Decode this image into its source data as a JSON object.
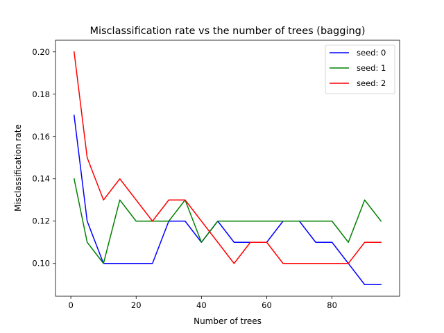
{
  "chart_data": {
    "type": "line",
    "title": "Misclassification rate vs the number of trees (bagging)",
    "xlabel": "Number of trees",
    "ylabel": "Misclassification rate",
    "xlim": [
      -4.7,
      100.7
    ],
    "ylim": [
      0.0845,
      0.2055
    ],
    "xticks": [
      0,
      20,
      40,
      60,
      80
    ],
    "xtick_labels": [
      "0",
      "20",
      "40",
      "60",
      "80"
    ],
    "yticks": [
      0.1,
      0.12,
      0.14,
      0.16,
      0.18,
      0.2
    ],
    "ytick_labels": [
      "0.10",
      "0.12",
      "0.14",
      "0.16",
      "0.18",
      "0.20"
    ],
    "grid": false,
    "legend_position": "top-right",
    "x": [
      1,
      5,
      10,
      15,
      20,
      25,
      30,
      35,
      40,
      45,
      50,
      55,
      60,
      65,
      70,
      75,
      80,
      85,
      90,
      95
    ],
    "series": [
      {
        "name": "seed: 0",
        "color": "#0000ff",
        "values": [
          0.17,
          0.12,
          0.1,
          0.1,
          0.1,
          0.1,
          0.12,
          0.12,
          0.11,
          0.12,
          0.11,
          0.11,
          0.11,
          0.12,
          0.12,
          0.11,
          0.11,
          0.1,
          0.09,
          0.09
        ]
      },
      {
        "name": "seed: 1",
        "color": "#008000",
        "values": [
          0.14,
          0.11,
          0.1,
          0.13,
          0.12,
          0.12,
          0.12,
          0.13,
          0.11,
          0.12,
          0.12,
          0.12,
          0.12,
          0.12,
          0.12,
          0.12,
          0.12,
          0.11,
          0.13,
          0.12
        ]
      },
      {
        "name": "seed: 2",
        "color": "#ff0000",
        "values": [
          0.2,
          0.15,
          0.13,
          0.14,
          0.13,
          0.12,
          0.13,
          0.13,
          0.12,
          0.11,
          0.1,
          0.11,
          0.11,
          0.1,
          0.1,
          0.1,
          0.1,
          0.1,
          0.11,
          0.11
        ]
      }
    ]
  }
}
